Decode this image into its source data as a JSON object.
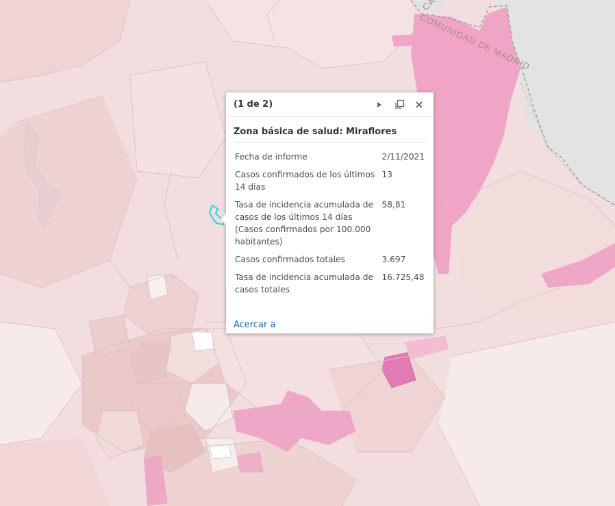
{
  "map": {
    "region_label": "COMUNIDAD DE MADRID",
    "region_label_top": "CAS",
    "colors": {
      "base": "#f2dede",
      "light": "#f7e9e9",
      "mid": "#eccaca",
      "pink": "#f0a5c6",
      "magenta": "#e27bb4",
      "grey": "#e4e3e4",
      "selection": "#28d2e6",
      "border": "#c9b7b8"
    }
  },
  "popup": {
    "counter": "(1 de 2)",
    "title": "Zona básica de salud: Miraflores",
    "attributes": [
      {
        "label": "Fecha de informe",
        "value": "2/11/2021"
      },
      {
        "label": "Casos confirmados de los últimos 14 días",
        "value": "13"
      },
      {
        "label": "Tasa de incidencia acumulada de casos de los últimos 14 días (Casos confirmados por 100.000 habitantes)",
        "value": "58,81"
      },
      {
        "label": "Casos confirmados totales",
        "value": "3.697"
      },
      {
        "label": "Tasa de incidencia acumulada de casos totales",
        "value": "16.725,48"
      }
    ],
    "zoom_label": "Acercar a",
    "icons": [
      "next-icon",
      "dock-icon",
      "close-icon"
    ]
  }
}
